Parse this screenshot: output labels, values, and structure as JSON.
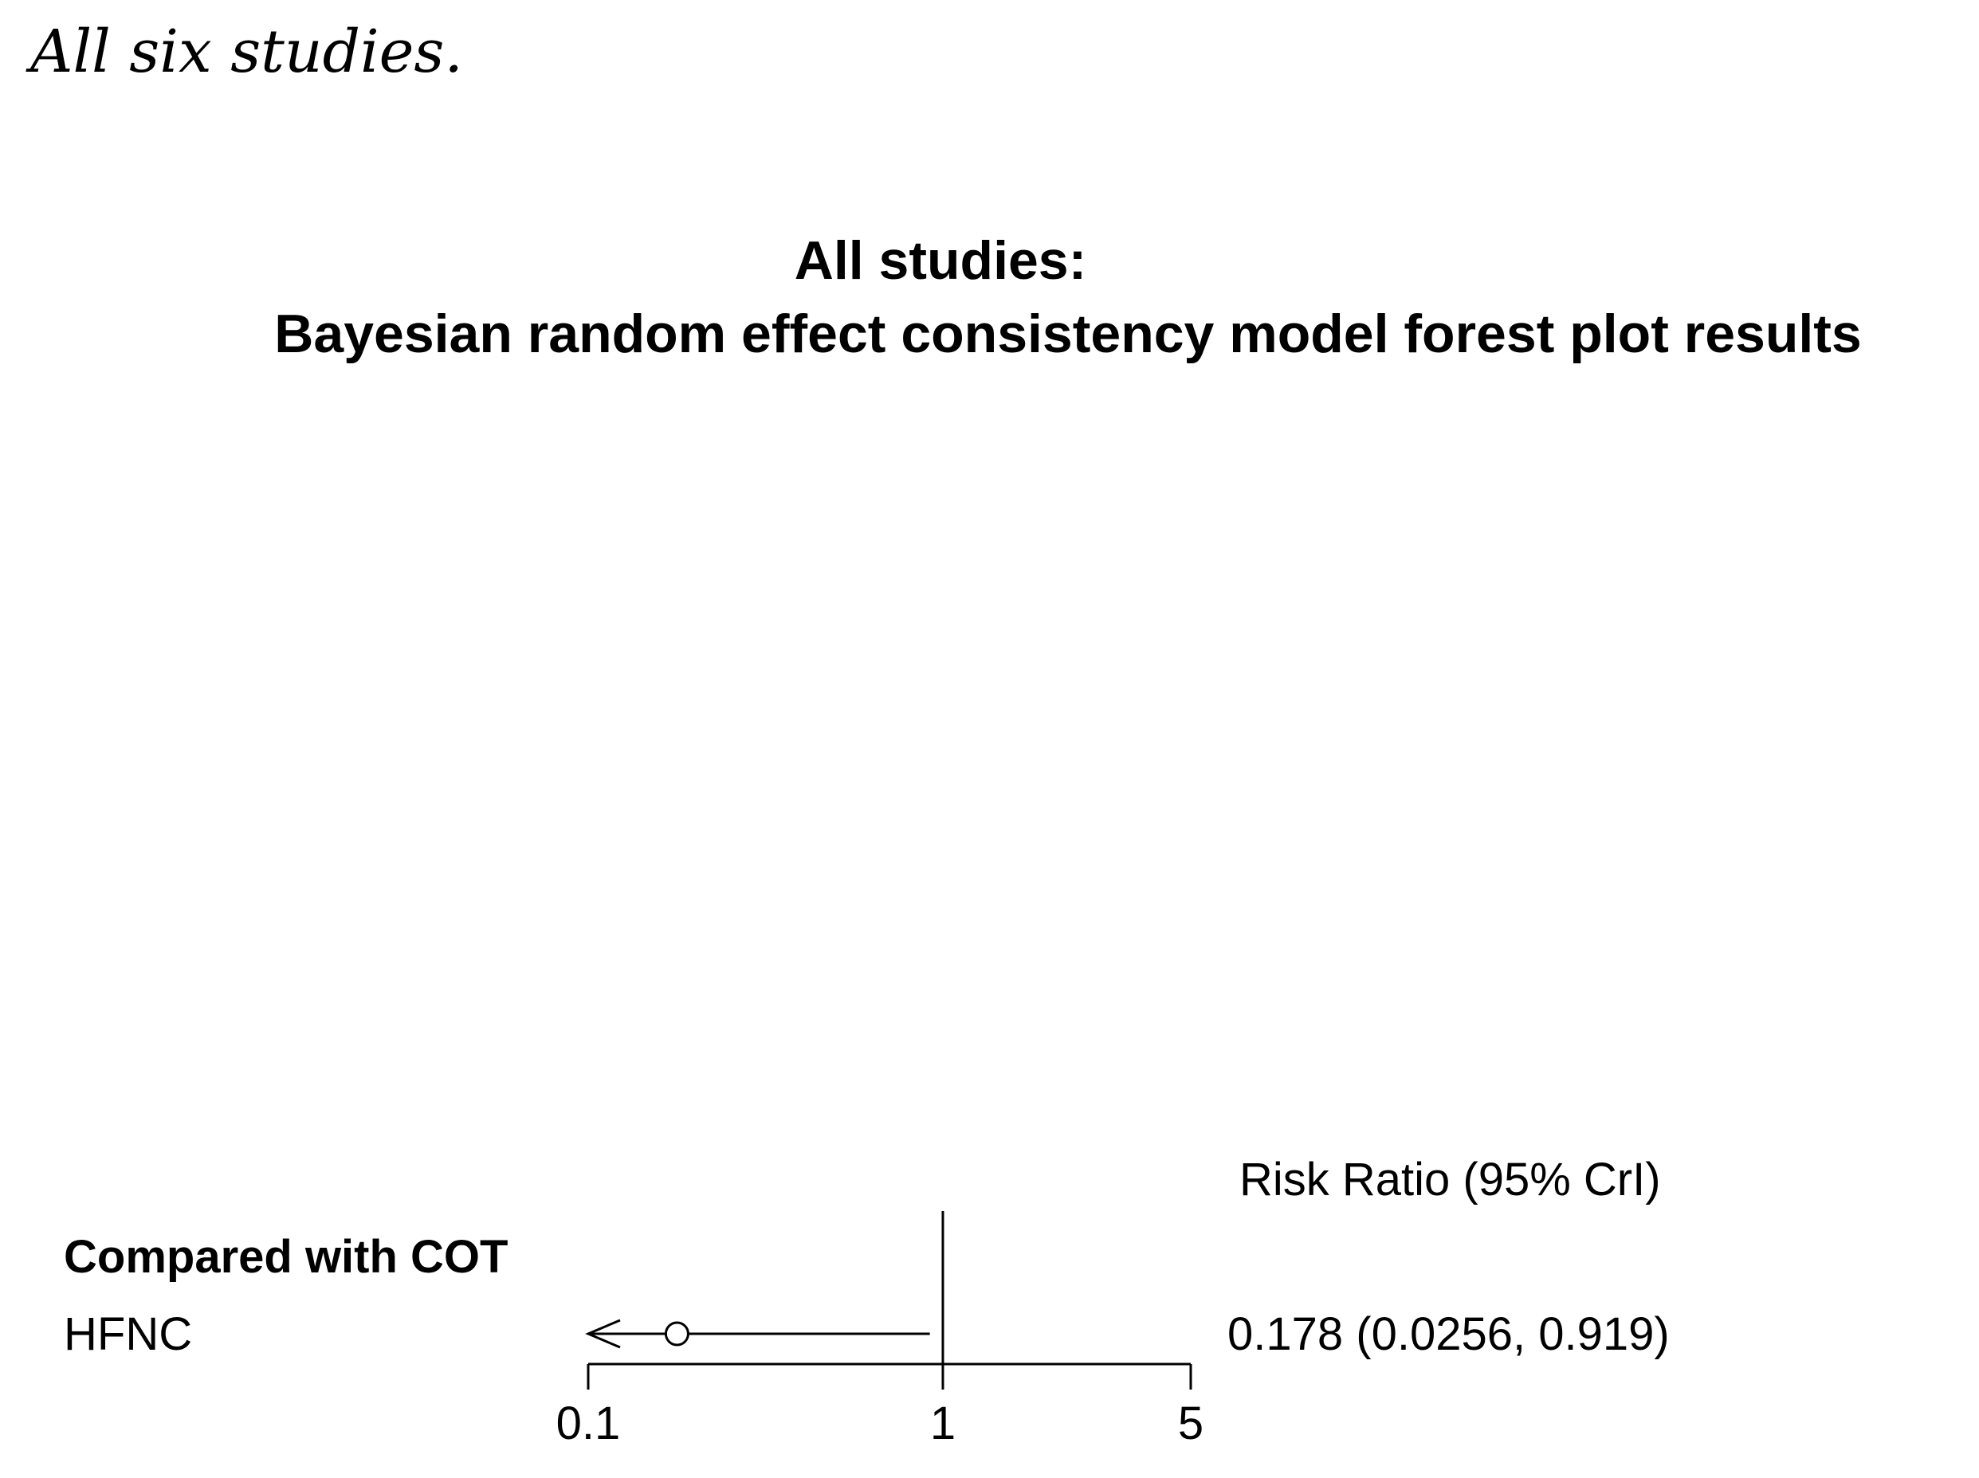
{
  "caption": "All six studies.",
  "chart_data": {
    "type": "forest",
    "title_line1": "All studies:",
    "title_line2": "Bayesian random effect consistency model forest plot results",
    "column_header": "Risk Ratio (95% CrI)",
    "group_label": "Compared with COT",
    "rows": [
      {
        "label": "HFNC",
        "estimate": 0.178,
        "lower": 0.0256,
        "upper": 0.919,
        "ci_text": "0.178 (0.0256, 0.919)",
        "lower_clipped": true
      }
    ],
    "x_scale": "log",
    "x_range": [
      0.1,
      5
    ],
    "x_ticks": [
      {
        "value": 0.1,
        "label": "0.1"
      },
      {
        "value": 1,
        "label": "1"
      },
      {
        "value": 5,
        "label": "5"
      }
    ],
    "reference_value": 1
  }
}
